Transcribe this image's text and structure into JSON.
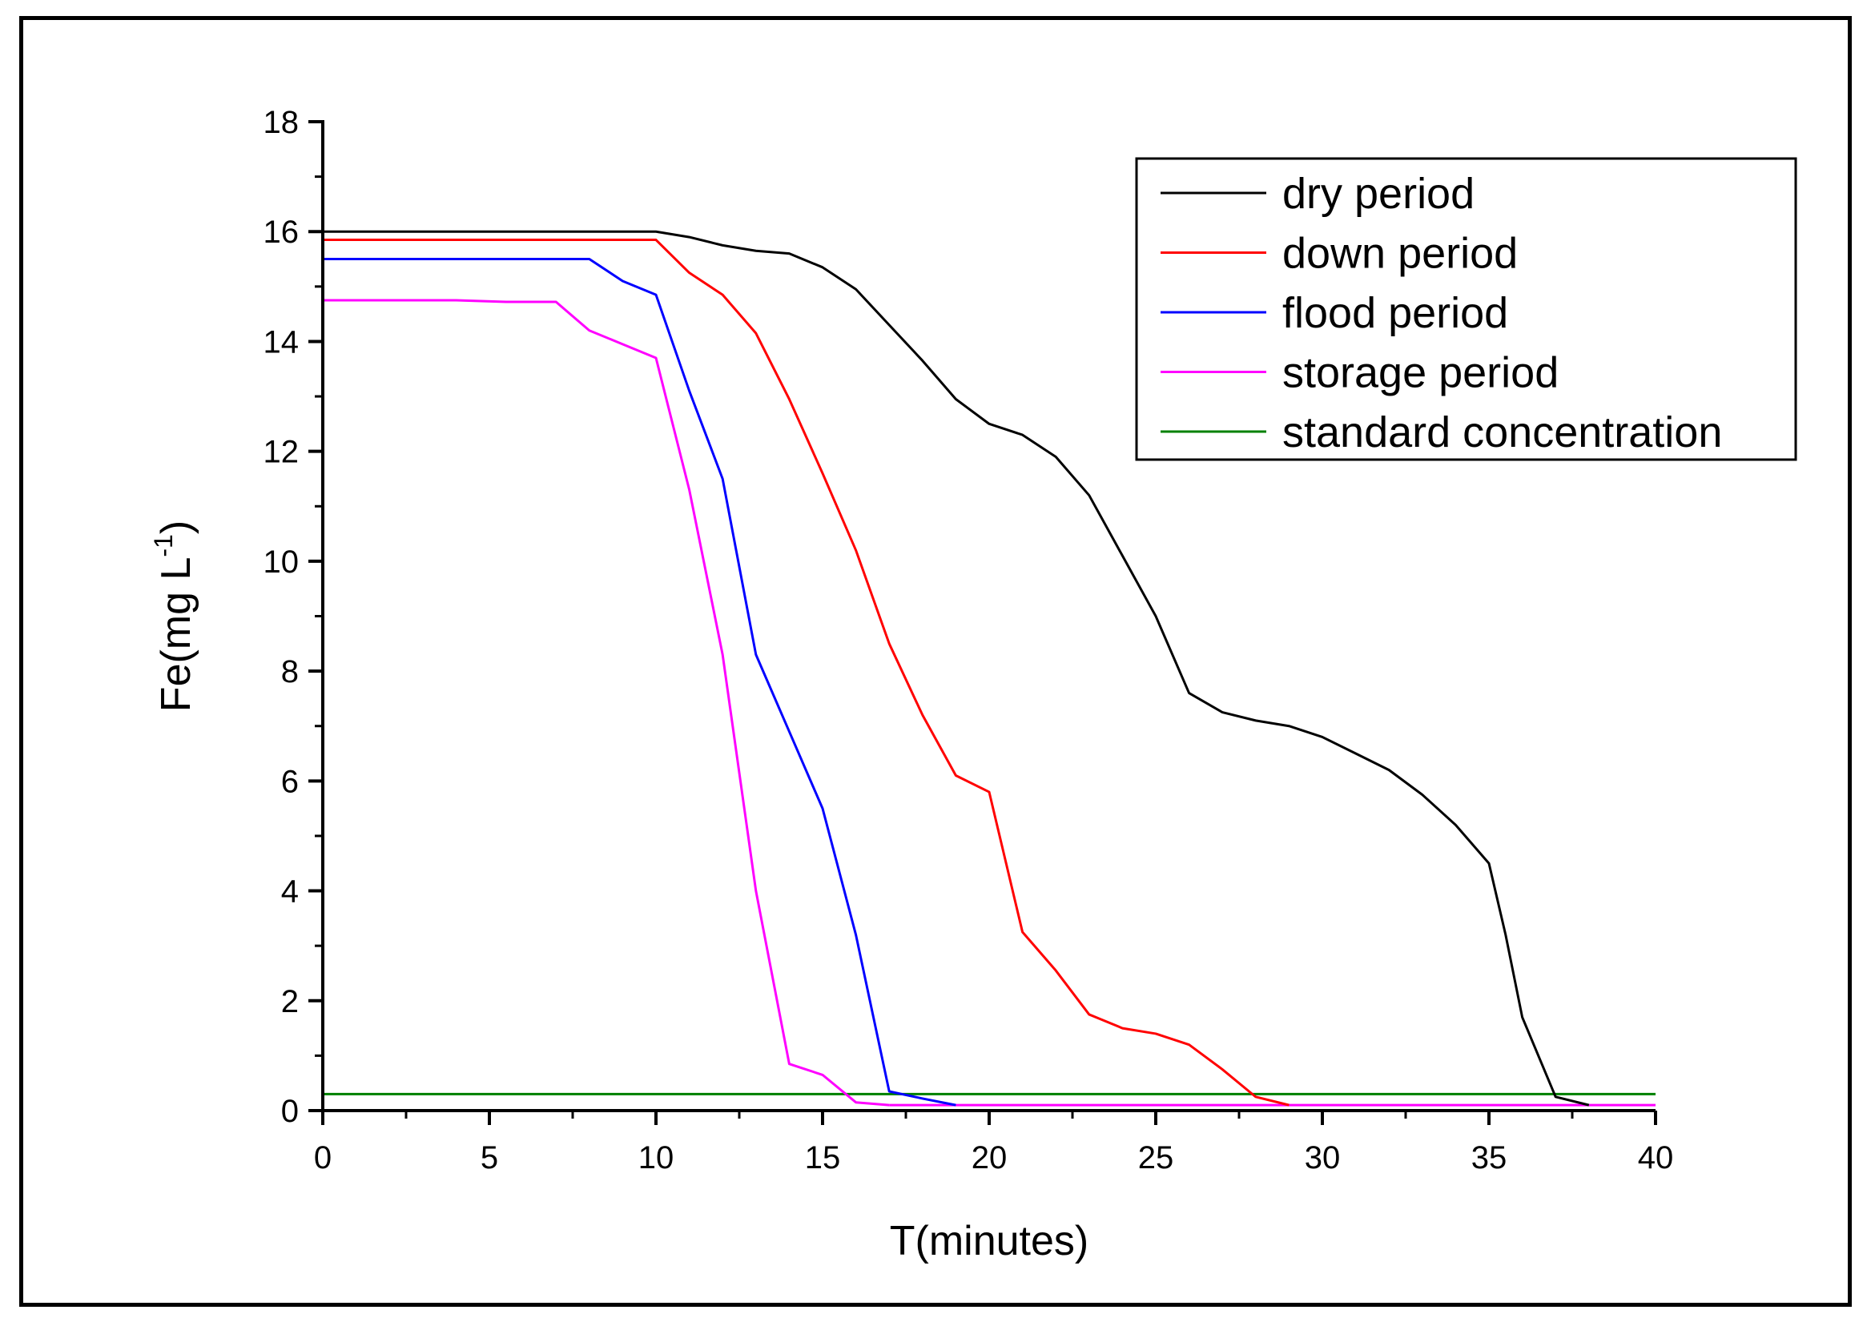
{
  "chart_data": {
    "type": "line",
    "xlabel": "T(minutes)",
    "ylabel": "Fe(mg L-1)",
    "ylabel_parts": {
      "main": "Fe(mg L",
      "sup": "-1",
      "close": ")"
    },
    "xlim": [
      0,
      40
    ],
    "ylim": [
      0,
      18
    ],
    "xticks": [
      0,
      5,
      10,
      15,
      20,
      25,
      30,
      35,
      40
    ],
    "xtick_labels": [
      "0",
      "5",
      "10",
      "15",
      "20",
      "25",
      "30",
      "35",
      "40"
    ],
    "yticks": [
      0,
      2,
      4,
      6,
      8,
      10,
      12,
      14,
      16,
      18
    ],
    "ytick_labels": [
      "0",
      "2",
      "4",
      "6",
      "8",
      "10",
      "12",
      "14",
      "16",
      "18"
    ],
    "grid": false,
    "legend_position": "top-right",
    "series": [
      {
        "name": "dry period",
        "color": "#000000",
        "x": [
          0,
          2,
          4,
          6,
          8,
          10,
          11,
          12,
          13,
          14,
          15,
          16,
          17,
          18,
          19,
          20,
          21,
          22,
          23,
          24,
          25,
          26,
          27,
          28,
          29,
          30,
          31,
          32,
          33,
          34,
          35,
          35.5,
          36,
          37,
          38
        ],
        "y": [
          16.0,
          16.0,
          16.0,
          16.0,
          16.0,
          16.0,
          15.9,
          15.75,
          15.65,
          15.6,
          15.35,
          14.95,
          14.3,
          13.65,
          12.95,
          12.5,
          12.3,
          11.9,
          11.2,
          10.1,
          9.0,
          7.6,
          7.25,
          7.1,
          7.0,
          6.8,
          6.5,
          6.2,
          5.75,
          5.2,
          4.5,
          3.2,
          1.7,
          0.25,
          0.1
        ]
      },
      {
        "name": "down period",
        "color": "#ff0000",
        "x": [
          0,
          2,
          4,
          6,
          8,
          10,
          11,
          12,
          13,
          14,
          15,
          16,
          17,
          18,
          19,
          20,
          21,
          22,
          23,
          24,
          25,
          26,
          27,
          28,
          29
        ],
        "y": [
          15.85,
          15.85,
          15.85,
          15.85,
          15.85,
          15.85,
          15.25,
          14.85,
          14.15,
          12.95,
          11.6,
          10.2,
          8.5,
          7.2,
          6.1,
          5.8,
          3.25,
          2.55,
          1.75,
          1.5,
          1.4,
          1.2,
          0.75,
          0.25,
          0.1
        ]
      },
      {
        "name": "flood period",
        "color": "#0000ff",
        "x": [
          0,
          2,
          4,
          6,
          8,
          9,
          10,
          11,
          12,
          13,
          14,
          15,
          16,
          17,
          18,
          19
        ],
        "y": [
          15.5,
          15.5,
          15.5,
          15.5,
          15.5,
          15.1,
          14.85,
          13.1,
          11.5,
          8.3,
          6.9,
          5.5,
          3.2,
          0.35,
          0.22,
          0.1
        ]
      },
      {
        "name": "storage period",
        "color": "#ff00ff",
        "x": [
          0,
          2,
          4,
          5.5,
          7,
          8,
          9,
          10,
          11,
          12,
          13,
          14,
          15,
          16,
          17
        ],
        "y": [
          14.75,
          14.75,
          14.75,
          14.72,
          14.72,
          14.2,
          13.95,
          13.7,
          11.3,
          8.3,
          4.0,
          0.85,
          0.65,
          0.15,
          0.1
        ]
      },
      {
        "name": "standard concentration",
        "color": "#008000",
        "x": [
          0,
          40
        ],
        "y": [
          0.3,
          0.3
        ]
      }
    ],
    "baseline": {
      "color": "#ff00ff",
      "x": [
        17,
        40
      ],
      "y": [
        0.1,
        0.1
      ]
    }
  }
}
